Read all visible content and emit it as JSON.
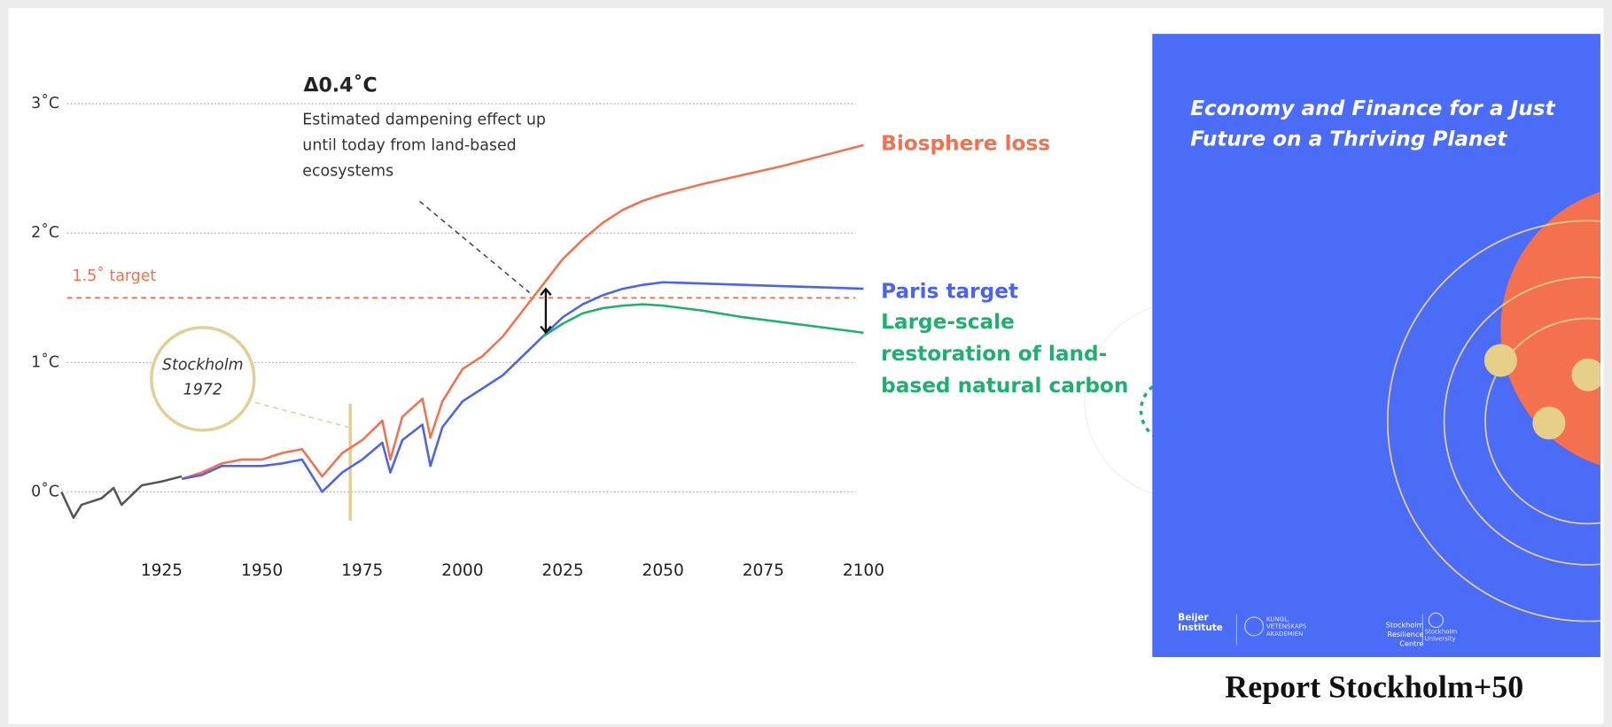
{
  "chart_data": {
    "type": "line",
    "xlim": [
      1900,
      2100
    ],
    "xticks": [
      1925,
      1950,
      1975,
      2000,
      2025,
      2050,
      2075,
      2100
    ],
    "ylim": [
      -0.3,
      3
    ],
    "yticks": [
      {
        "value": 0,
        "label": "0˚C"
      },
      {
        "value": 1,
        "label": "1˚C"
      },
      {
        "value": 2,
        "label": "2˚C"
      },
      {
        "value": 3,
        "label": "3˚C"
      }
    ],
    "grid": true,
    "series": [
      {
        "color": "#555555",
        "x": [
          1900,
          1903,
          1905,
          1910,
          1913,
          1915,
          1920,
          1925,
          1930
        ],
        "values": [
          0,
          -0.2,
          -0.1,
          -0.05,
          0.03,
          -0.1,
          0.05,
          0.08,
          0.12
        ]
      },
      {
        "name": "Biosphere loss",
        "color": "#f4714f",
        "x": [
          1930,
          1935,
          1940,
          1945,
          1950,
          1955,
          1960,
          1965,
          1970,
          1975,
          1980,
          1982,
          1985,
          1990,
          1992,
          1995,
          2000,
          2005,
          2010,
          2015,
          2020,
          2025,
          2030,
          2035,
          2040,
          2045,
          2050,
          2060,
          2070,
          2080,
          2090,
          2100
        ],
        "values": [
          0.1,
          0.15,
          0.22,
          0.25,
          0.25,
          0.3,
          0.33,
          0.12,
          0.3,
          0.4,
          0.55,
          0.25,
          0.58,
          0.72,
          0.42,
          0.7,
          0.95,
          1.05,
          1.2,
          1.4,
          1.6,
          1.8,
          1.95,
          2.08,
          2.18,
          2.25,
          2.3,
          2.38,
          2.45,
          2.52,
          2.6,
          2.68
        ]
      },
      {
        "name": "Paris target",
        "color": "#4a63f0",
        "x": [
          1930,
          1935,
          1940,
          1945,
          1950,
          1955,
          1960,
          1965,
          1970,
          1975,
          1980,
          1982,
          1985,
          1990,
          1992,
          1995,
          2000,
          2005,
          2010,
          2015,
          2020,
          2025,
          2030,
          2035,
          2040,
          2045,
          2050,
          2060,
          2070,
          2080,
          2090,
          2100
        ],
        "values": [
          0.1,
          0.13,
          0.2,
          0.2,
          0.2,
          0.22,
          0.25,
          0.0,
          0.15,
          0.25,
          0.38,
          0.15,
          0.4,
          0.52,
          0.2,
          0.5,
          0.7,
          0.8,
          0.9,
          1.05,
          1.2,
          1.35,
          1.45,
          1.52,
          1.57,
          1.6,
          1.62,
          1.61,
          1.6,
          1.59,
          1.58,
          1.57
        ]
      },
      {
        "name": "Large-scale restoration of land-based natural carbon sinks",
        "color": "#1fb06e",
        "x": [
          2020,
          2025,
          2030,
          2035,
          2040,
          2045,
          2050,
          2060,
          2070,
          2080,
          2090,
          2100
        ],
        "values": [
          1.2,
          1.3,
          1.38,
          1.42,
          1.44,
          1.45,
          1.44,
          1.4,
          1.35,
          1.31,
          1.27,
          1.23
        ]
      }
    ],
    "target": {
      "value": 1.5,
      "label": "1.5˚ target",
      "color": "#f4714f"
    },
    "marker": {
      "x": 1972,
      "label": "Stockholm 1972"
    },
    "annotation": {
      "title": "Δ0.4˚C",
      "text": "Estimated dampening effect up until today from land-based ecosystems",
      "x": 2020,
      "from": 1.2,
      "to": 1.6
    }
  },
  "report": {
    "title": "Economy and Finance for a Just Future on a Thriving Planet",
    "logos": [
      "Beijer Institute",
      "KUNGL. VETENSKAPS AKADEMIEN",
      "Stockholm Resilience Centre",
      "Stockholm University"
    ],
    "caption": "Report Stockholm+50"
  }
}
